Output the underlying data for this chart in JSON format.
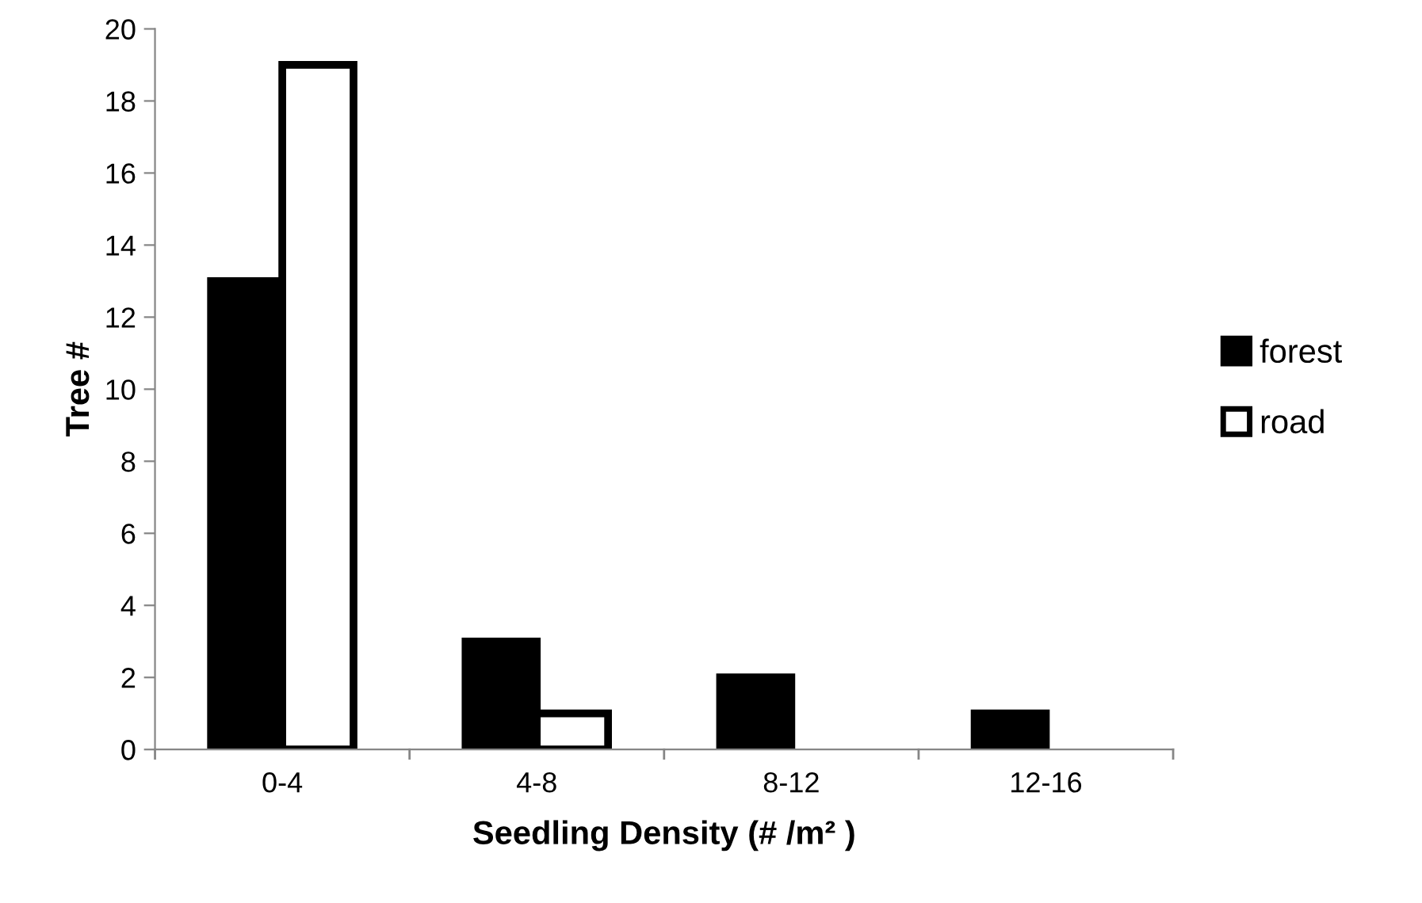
{
  "chart_data": {
    "type": "bar",
    "xlabel": "Seedling Density (# /m² )",
    "ylabel": "Tree #",
    "categories": [
      "0-4",
      "4-8",
      "8-12",
      "12-16"
    ],
    "series": [
      {
        "name": "forest",
        "color": "#000000",
        "values": [
          13,
          3,
          2,
          1
        ]
      },
      {
        "name": "road",
        "color": "#ffffff",
        "values": [
          19,
          1,
          0,
          0
        ]
      }
    ],
    "ylim": [
      0,
      20
    ],
    "yticks": [
      0,
      2,
      4,
      6,
      8,
      10,
      12,
      14,
      16,
      18,
      20
    ],
    "grid": false,
    "legend": "right"
  }
}
